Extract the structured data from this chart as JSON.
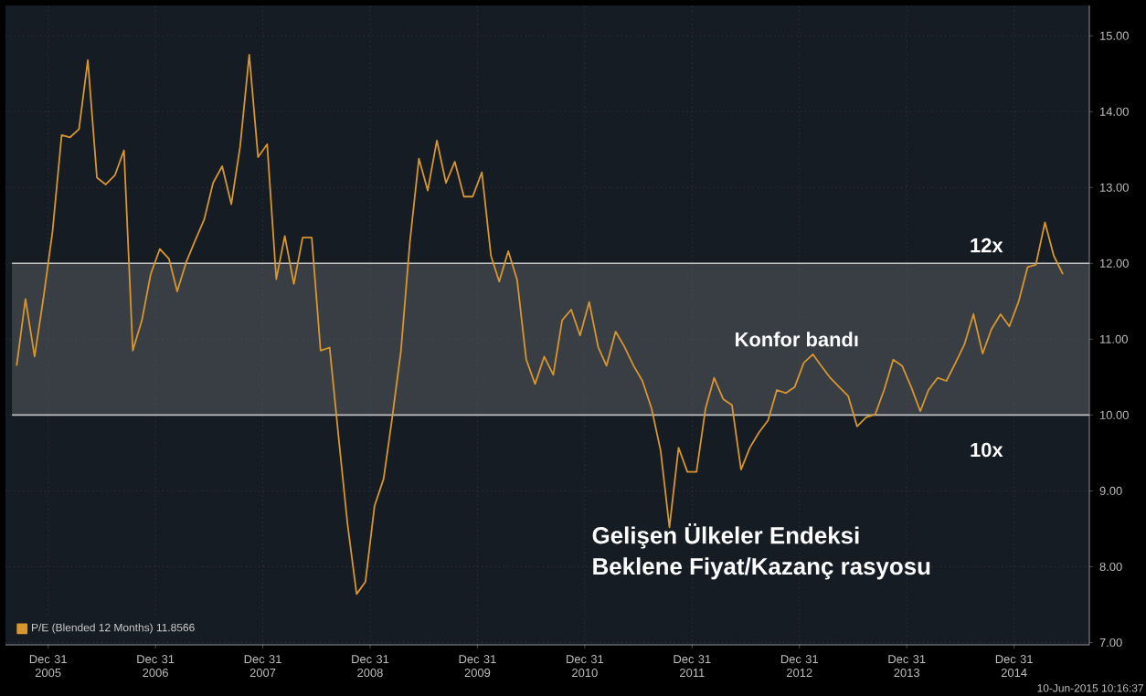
{
  "chart_data": {
    "type": "line",
    "title": "Gelişen Ülkeler Endeksi",
    "subtitle": "Beklene Fiyat/Kazanç rasyosu",
    "x": [
      "2005-09",
      "2005-10",
      "2005-11",
      "2005-12",
      "2006-01",
      "2006-02",
      "2006-03",
      "2006-04",
      "2006-05",
      "2006-06",
      "2006-07",
      "2006-08",
      "2006-09",
      "2006-10",
      "2006-11",
      "2006-12",
      "2007-01",
      "2007-02",
      "2007-03",
      "2007-04",
      "2007-05",
      "2007-06",
      "2007-07",
      "2007-08",
      "2007-09",
      "2007-10",
      "2007-11",
      "2007-12",
      "2008-01",
      "2008-02",
      "2008-03",
      "2008-04",
      "2008-05",
      "2008-06",
      "2008-07",
      "2008-08",
      "2008-09",
      "2008-10",
      "2008-11",
      "2008-12",
      "2009-01",
      "2009-02",
      "2009-03",
      "2009-04",
      "2009-05",
      "2009-06",
      "2009-07",
      "2009-08",
      "2009-09",
      "2009-10",
      "2009-11",
      "2009-12",
      "2010-01",
      "2010-02",
      "2010-03",
      "2010-04",
      "2010-05",
      "2010-06",
      "2010-07",
      "2010-08",
      "2010-09",
      "2010-10",
      "2010-11",
      "2010-12",
      "2011-01",
      "2011-02",
      "2011-03",
      "2011-04",
      "2011-05",
      "2011-06",
      "2011-07",
      "2011-08",
      "2011-09",
      "2011-10",
      "2011-11",
      "2011-12",
      "2012-01",
      "2012-02",
      "2012-03",
      "2012-04",
      "2012-05",
      "2012-06",
      "2012-07",
      "2012-08",
      "2012-09",
      "2012-10",
      "2012-11",
      "2012-12",
      "2013-01",
      "2013-02",
      "2013-03",
      "2013-04",
      "2013-05",
      "2013-06",
      "2013-07",
      "2013-08",
      "2013-09",
      "2013-10",
      "2013-11",
      "2013-12",
      "2014-01",
      "2014-02",
      "2014-03",
      "2014-04",
      "2014-05",
      "2014-06",
      "2014-07",
      "2014-08",
      "2014-09",
      "2014-10",
      "2014-11",
      "2014-12",
      "2015-01",
      "2015-02",
      "2015-03",
      "2015-04",
      "2015-05",
      "2015-06"
    ],
    "series": [
      {
        "name": "P/E (Blended 12 Months) 11.8566",
        "color": "#d8962e",
        "values": [
          10.65,
          11.53,
          10.77,
          11.54,
          12.42,
          13.69,
          13.66,
          13.77,
          14.68,
          13.13,
          13.04,
          13.16,
          13.49,
          10.85,
          11.25,
          11.86,
          12.19,
          12.06,
          11.63,
          12.02,
          12.3,
          12.58,
          13.06,
          13.28,
          12.78,
          13.54,
          14.75,
          13.4,
          13.57,
          11.79,
          12.36,
          11.73,
          12.34,
          12.34,
          10.85,
          10.89,
          9.69,
          8.56,
          7.64,
          7.8,
          8.8,
          9.16,
          9.93,
          10.85,
          12.27,
          13.38,
          12.96,
          13.62,
          13.06,
          13.34,
          12.88,
          12.88,
          13.2,
          12.1,
          11.76,
          12.16,
          11.78,
          10.73,
          10.41,
          10.77,
          10.53,
          11.25,
          11.39,
          11.05,
          11.49,
          10.89,
          10.65,
          11.1,
          10.9,
          10.65,
          10.45,
          10.09,
          9.53,
          8.52,
          9.57,
          9.25,
          9.25,
          10.09,
          10.49,
          10.21,
          10.13,
          9.28,
          9.57,
          9.77,
          9.93,
          10.33,
          10.29,
          10.37,
          10.69,
          10.8,
          10.65,
          10.49,
          10.37,
          10.25,
          9.85,
          9.97,
          10.01,
          10.33,
          10.73,
          10.65,
          10.37,
          10.05,
          10.33,
          10.49,
          10.45,
          10.69,
          10.93,
          11.33,
          10.81,
          11.13,
          11.33,
          11.17,
          11.49,
          11.95,
          11.98,
          12.54,
          12.1,
          11.8566
        ]
      }
    ],
    "xlim": [
      "2005-08-08",
      "2015-09-13"
    ],
    "ylim": [
      6.97,
      15.4
    ],
    "xticks": [
      {
        "value": "2005-12-31",
        "label": "Dec 31 2005"
      },
      {
        "value": "2006-12-31",
        "label": "Dec 31 2006"
      },
      {
        "value": "2007-12-31",
        "label": "Dec 31 2007"
      },
      {
        "value": "2008-12-31",
        "label": "Dec 31 2008"
      },
      {
        "value": "2009-12-31",
        "label": "Dec 31 2009"
      },
      {
        "value": "2010-12-31",
        "label": "Dec 31 2010"
      },
      {
        "value": "2011-12-31",
        "label": "Dec 31 2011"
      },
      {
        "value": "2012-12-31",
        "label": "Dec 31 2012"
      },
      {
        "value": "2013-12-31",
        "label": "Dec 31 2013"
      },
      {
        "value": "2014-12-31",
        "label": "Dec 31 2014"
      }
    ],
    "yticks": [
      {
        "value": 7,
        "label": "7.00"
      },
      {
        "value": 8,
        "label": "8.00"
      },
      {
        "value": 9,
        "label": "9.00"
      },
      {
        "value": 10,
        "label": "10.00"
      },
      {
        "value": 11,
        "label": "11.00"
      },
      {
        "value": 12,
        "label": "12.00"
      },
      {
        "value": 13,
        "label": "13.00"
      },
      {
        "value": 14,
        "label": "14.00"
      },
      {
        "value": 15,
        "label": "15.00"
      }
    ],
    "bands": [
      {
        "axis": "y",
        "from": 10,
        "to": 12,
        "label": "Konfor bandı",
        "color": "#5c6066"
      }
    ],
    "annotations": [
      "12x",
      "10x",
      "10-Jun-2015 10:16:37"
    ],
    "grid": true,
    "legend": "bottom left",
    "line_style": "solid",
    "marker": "none"
  }
}
